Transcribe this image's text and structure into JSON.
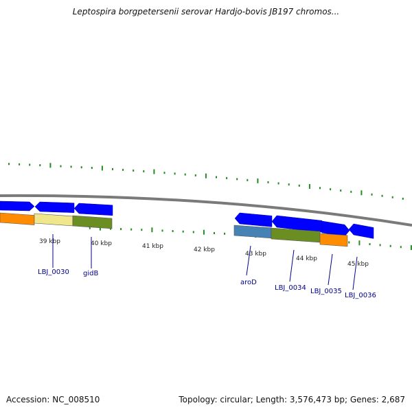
{
  "title": "Leptospira borgpetersenii serovar Hardjo-bovis JB197 chromos...",
  "footer": {
    "accession": "Accession: NC_008510",
    "summary": "Topology: circular; Length: 3,576,473 bp; Genes: 2,687"
  },
  "colors": {
    "backbone": "#7a7a7a",
    "cds_arrow": "#0000ff",
    "tick": "#228b22",
    "label": "#00008b",
    "band_orange": "#ff8c00",
    "band_yellow": "#f0e68c",
    "band_olive": "#6b8e23",
    "band_steel": "#4682b4"
  },
  "scale_labels": [
    "39 kbp",
    "40 kbp",
    "41 kbp",
    "42 kbp",
    "43 kbp",
    "44 kbp",
    "45 kbp"
  ],
  "gene_labels": [
    "LBJ_0030",
    "gidB",
    "aroD",
    "LBJ_0034",
    "LBJ_0035",
    "LBJ_0036"
  ]
}
